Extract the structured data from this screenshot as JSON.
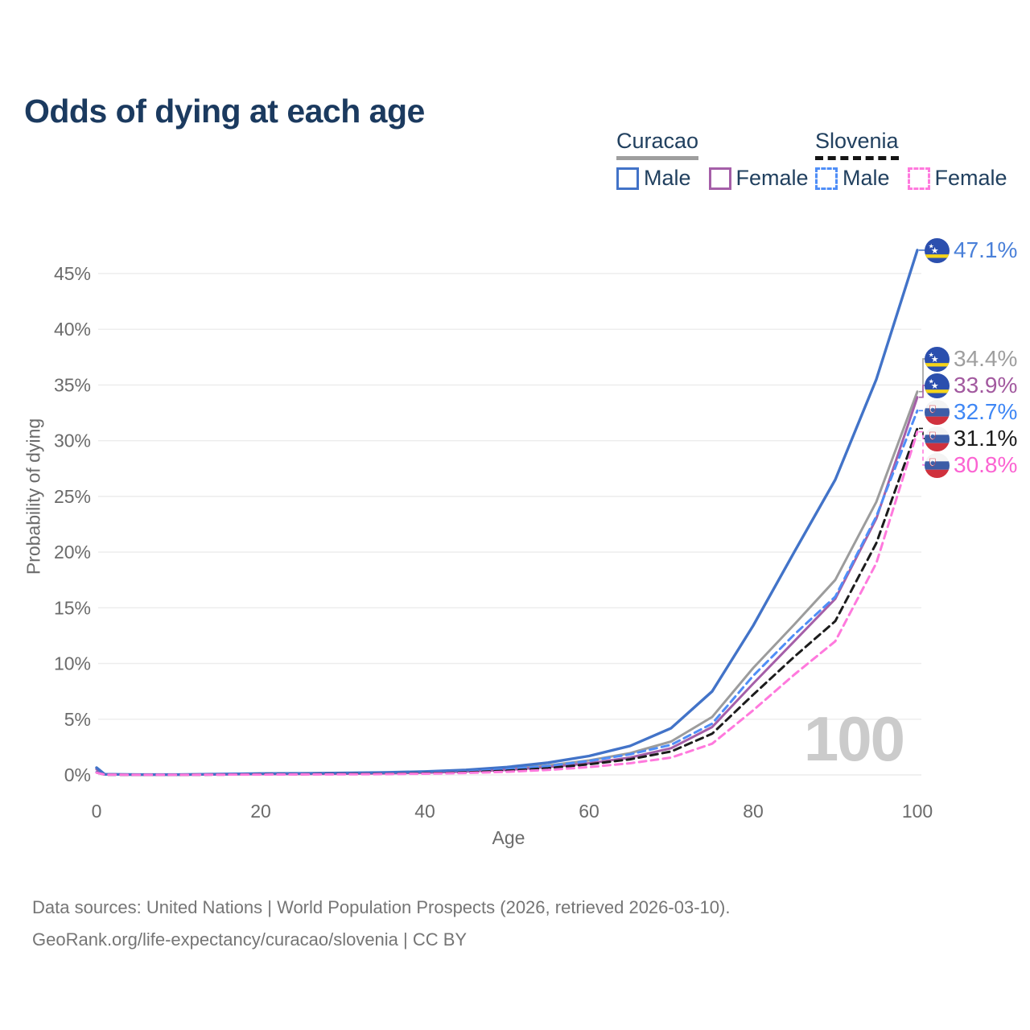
{
  "title": "Odds of dying at each age",
  "legend": {
    "groups": [
      {
        "id": "curacao",
        "label": "Curacao",
        "line_style": "solid",
        "underline_color": "#9e9e9e",
        "items": [
          {
            "label": "Male",
            "color": "#4273c8"
          },
          {
            "label": "Female",
            "color": "#a55fa8"
          }
        ]
      },
      {
        "id": "slovenia",
        "label": "Slovenia",
        "line_style": "dashed",
        "underline_color": "#141414",
        "items": [
          {
            "label": "Male",
            "color": "#4f8ef7"
          },
          {
            "label": "Female",
            "color": "#ff79dd"
          }
        ]
      }
    ]
  },
  "watermark": "100",
  "footer": {
    "line1": "Data sources: United Nations | World Population Prospects (2026, retrieved 2026-03-10).",
    "line2": "GeoRank.org/life-expectancy/curacao/slovenia | CC BY"
  },
  "chart_data": {
    "type": "line",
    "title": "Odds of dying at each age",
    "xlabel": "Age",
    "ylabel": "Probability of dying",
    "xlim": [
      0,
      100
    ],
    "ylim": [
      0,
      47.5
    ],
    "grid": "horizontal",
    "x_ticks": [
      0,
      20,
      40,
      60,
      80,
      100
    ],
    "y_ticks": [
      {
        "v": 0,
        "label": "0%"
      },
      {
        "v": 5,
        "label": "5%"
      },
      {
        "v": 10,
        "label": "10%"
      },
      {
        "v": 15,
        "label": "15%"
      },
      {
        "v": 20,
        "label": "20%"
      },
      {
        "v": 25,
        "label": "25%"
      },
      {
        "v": 30,
        "label": "30%"
      },
      {
        "v": 35,
        "label": "35%"
      },
      {
        "v": 40,
        "label": "40%"
      },
      {
        "v": 45,
        "label": "45%"
      }
    ],
    "ages": [
      0,
      1,
      5,
      10,
      15,
      20,
      25,
      30,
      35,
      40,
      45,
      50,
      55,
      60,
      65,
      70,
      75,
      80,
      85,
      90,
      95,
      100
    ],
    "series": [
      {
        "name": "Curacao Both sexes",
        "country": "Curacao",
        "flag": "curacao",
        "color": "#9c9c9c",
        "label_color": "#9e9e9e",
        "dashed": false,
        "width": 3,
        "values": [
          0.55,
          0.05,
          0.02,
          0.02,
          0.05,
          0.09,
          0.11,
          0.13,
          0.17,
          0.24,
          0.36,
          0.55,
          0.85,
          1.3,
          1.95,
          3.0,
          5.2,
          9.6,
          13.5,
          17.5,
          24.5,
          34.4
        ],
        "end_value": 34.4,
        "end_label": "34.4%"
      },
      {
        "name": "Curacao Female",
        "country": "Curacao",
        "flag": "curacao",
        "color": "#a55fa8",
        "label_color": "#a2599f",
        "dashed": false,
        "width": 3,
        "values": [
          0.5,
          0.05,
          0.02,
          0.02,
          0.04,
          0.07,
          0.08,
          0.1,
          0.14,
          0.2,
          0.3,
          0.45,
          0.7,
          1.05,
          1.55,
          2.4,
          4.3,
          8.2,
          12.0,
          15.8,
          23.0,
          33.9
        ],
        "end_value": 33.9,
        "end_label": "33.9%"
      },
      {
        "name": "Curacao Male",
        "country": "Curacao",
        "flag": "curacao",
        "color": "#4273c8",
        "label_color": "#4a80d9",
        "dashed": false,
        "width": 3.4,
        "values": [
          0.65,
          0.06,
          0.03,
          0.03,
          0.07,
          0.12,
          0.14,
          0.17,
          0.22,
          0.3,
          0.45,
          0.7,
          1.1,
          1.7,
          2.6,
          4.2,
          7.5,
          13.4,
          20.0,
          26.5,
          35.5,
          47.1
        ],
        "end_value": 47.1,
        "end_label": "47.1%"
      },
      {
        "name": "Slovenia Male",
        "country": "Slovenia",
        "flag": "slovenia",
        "color": "#4f8ef7",
        "label_color": "#3f87f5",
        "dashed": true,
        "width": 3,
        "values": [
          0.25,
          0.03,
          0.01,
          0.01,
          0.04,
          0.07,
          0.08,
          0.1,
          0.13,
          0.2,
          0.3,
          0.5,
          0.8,
          1.25,
          1.85,
          2.7,
          4.6,
          8.9,
          12.6,
          16.0,
          23.2,
          32.7
        ],
        "end_value": 32.7,
        "end_label": "32.7%"
      },
      {
        "name": "Slovenia Both sexes",
        "country": "Slovenia",
        "flag": "slovenia",
        "color": "#1c1c1c",
        "label_color": "#1c1c1c",
        "dashed": true,
        "width": 3,
        "values": [
          0.22,
          0.02,
          0.01,
          0.01,
          0.03,
          0.05,
          0.06,
          0.08,
          0.1,
          0.15,
          0.23,
          0.38,
          0.6,
          0.95,
          1.4,
          2.1,
          3.7,
          7.2,
          10.6,
          13.8,
          20.8,
          31.1
        ],
        "end_value": 31.1,
        "end_label": "31.1%"
      },
      {
        "name": "Slovenia Female",
        "country": "Slovenia",
        "flag": "slovenia",
        "color": "#ff79dd",
        "label_color": "#fb63d2",
        "dashed": true,
        "width": 3,
        "values": [
          0.2,
          0.02,
          0.01,
          0.01,
          0.02,
          0.03,
          0.04,
          0.05,
          0.07,
          0.11,
          0.17,
          0.28,
          0.45,
          0.7,
          1.05,
          1.55,
          2.8,
          5.8,
          9.0,
          12.0,
          19.0,
          30.8
        ],
        "end_value": 30.8,
        "end_label": "30.8%"
      }
    ]
  }
}
